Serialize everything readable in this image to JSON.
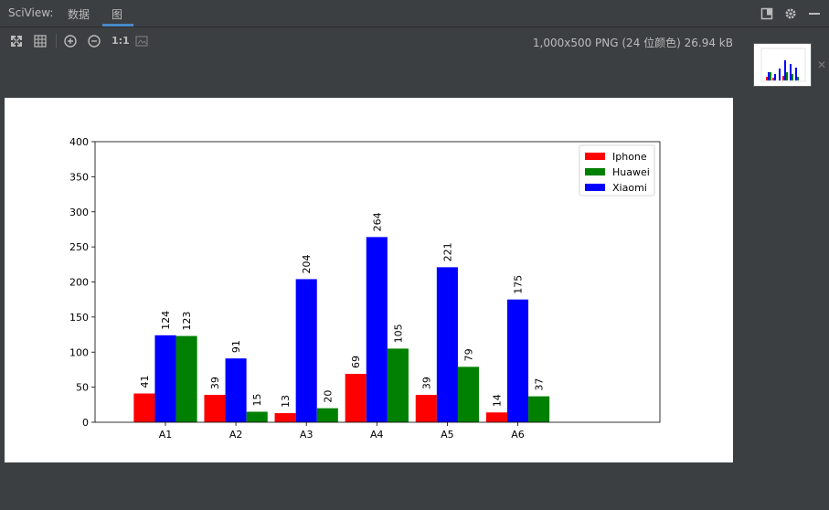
{
  "app": {
    "title": "SciView:"
  },
  "tabs": [
    {
      "label": "数据",
      "active": false
    },
    {
      "label": "图",
      "active": true
    }
  ],
  "image_info": "1,000x500 PNG (24 位颜色) 26.94 kB",
  "toolbar": {
    "icons": [
      "fit-icon",
      "grid-icon",
      "zoom-in-icon",
      "zoom-out-icon",
      "actual-size-icon",
      "background-icon"
    ],
    "actual_size_label": "1:1"
  },
  "chart_data": {
    "type": "bar",
    "categories": [
      "A1",
      "A2",
      "A3",
      "A4",
      "A5",
      "A6"
    ],
    "series": [
      {
        "name": "Iphone",
        "color": "#ff0000",
        "values": [
          41,
          39,
          13,
          69,
          39,
          14
        ]
      },
      {
        "name": "Xiaomi",
        "color": "#0000ff",
        "values": [
          124,
          91,
          204,
          264,
          221,
          175
        ]
      },
      {
        "name": "Huawei",
        "color": "#008000",
        "values": [
          123,
          15,
          20,
          105,
          79,
          37
        ]
      }
    ],
    "legend": [
      "Iphone",
      "Huawei",
      "Xiaomi"
    ],
    "legend_position": "top-right",
    "ylim": [
      0,
      400
    ],
    "yticks": [
      0,
      50,
      100,
      150,
      200,
      250,
      300,
      350,
      400
    ],
    "xlabel": "",
    "ylabel": "",
    "title": ""
  }
}
